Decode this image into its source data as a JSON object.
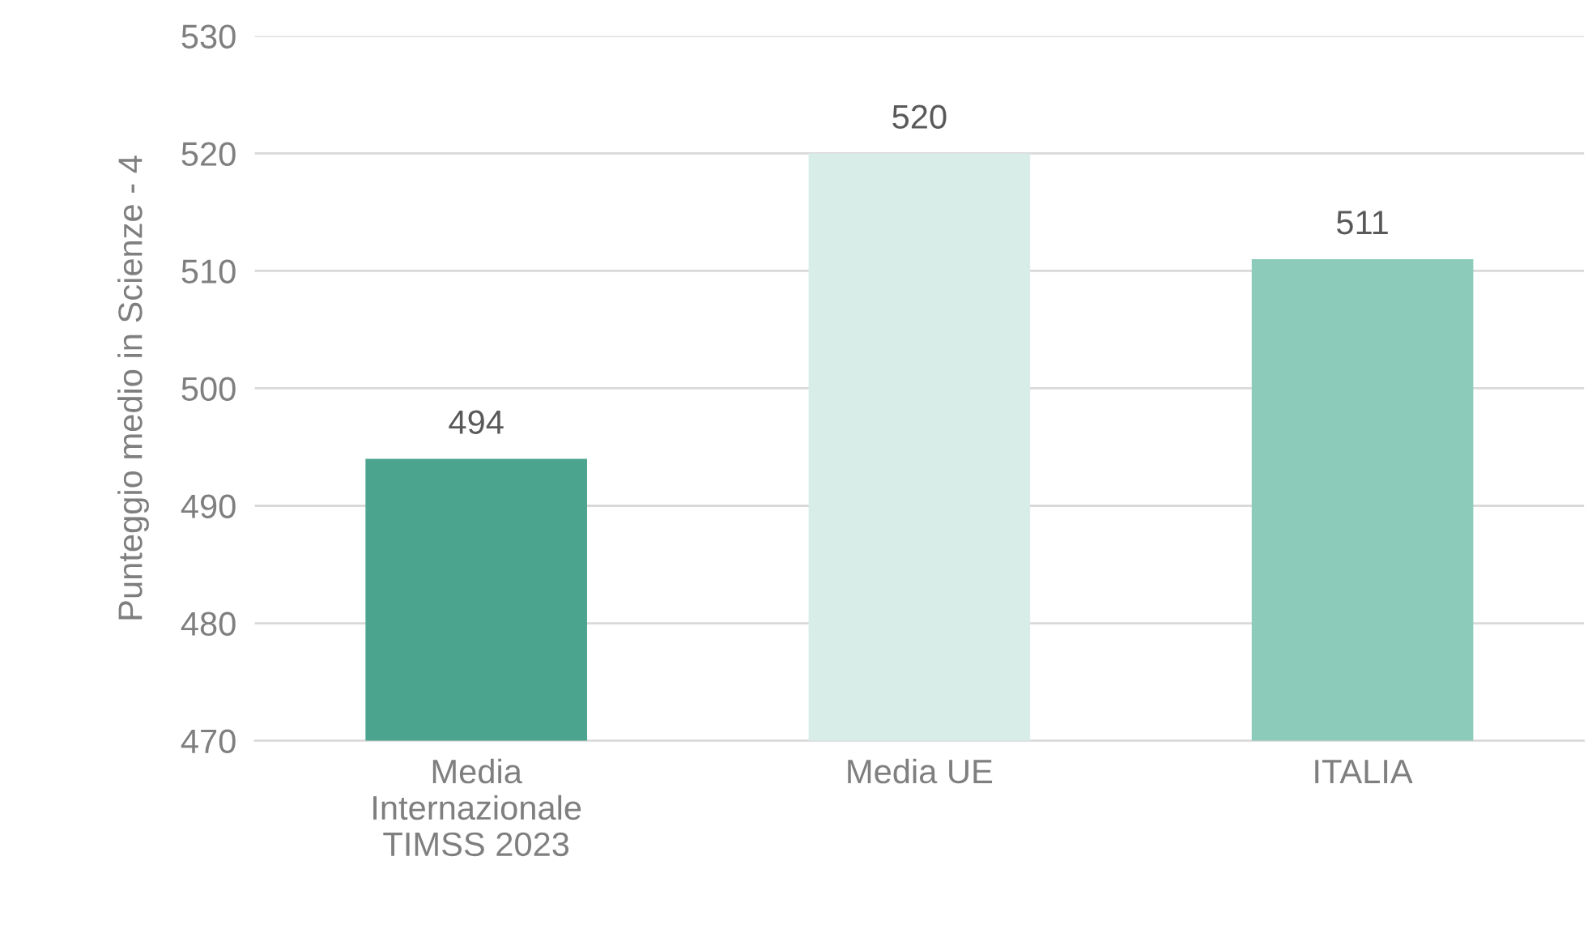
{
  "chart_data": {
    "type": "bar",
    "ylabel": "Punteggio medio in Scienze - 4",
    "categories": [
      "Media\nInternazionale\nTIMSS 2023",
      "Media UE",
      "ITALIA"
    ],
    "values": [
      494,
      520,
      511
    ],
    "colors": [
      "#4aa48e",
      "#d9ede8",
      "#8ccbba"
    ],
    "ylim": [
      470,
      530
    ],
    "yticks": [
      470,
      480,
      490,
      500,
      510,
      520,
      530
    ],
    "grid": "y",
    "data_labels": true
  }
}
